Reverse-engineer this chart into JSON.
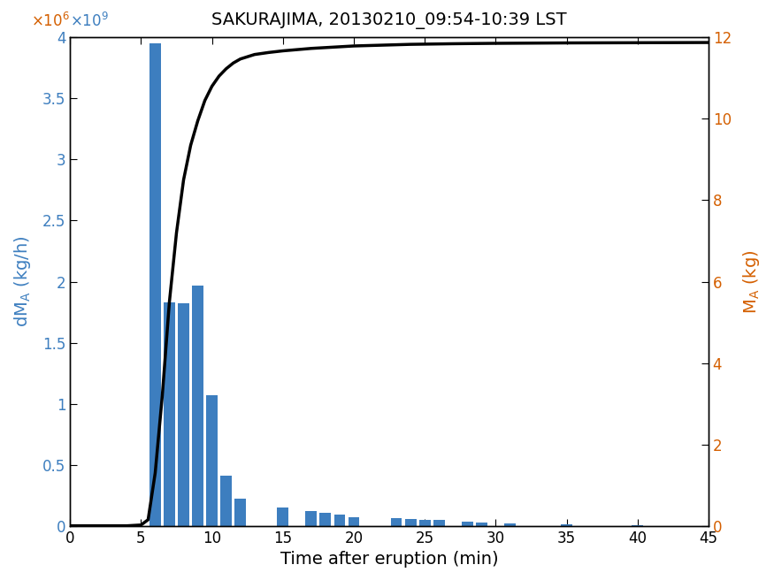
{
  "title": "SAKURAJIMA, 20130210_09:54-10:39 LST",
  "xlabel": "Time after eruption (min)",
  "ylabel_left": "dM_A (kg/h)",
  "ylabel_right": "M_A (kg)",
  "bar_color": "#3d7ebf",
  "line_color": "black",
  "left_color": "#3d7ebf",
  "right_color": "#d45f00",
  "xlim": [
    0,
    45
  ],
  "ylim_left": [
    0,
    4000000000.0
  ],
  "ylim_right": [
    0,
    12000000.0
  ],
  "bar_positions": [
    6,
    7,
    8,
    9,
    10,
    11,
    12,
    15,
    17,
    18,
    19,
    20,
    23,
    24,
    25,
    26,
    28,
    29,
    31,
    35,
    40
  ],
  "bar_heights": [
    3950000000.0,
    1830000000.0,
    1820000000.0,
    1970000000.0,
    1070000000.0,
    410000000.0,
    220000000.0,
    150000000.0,
    120000000.0,
    110000000.0,
    90000000.0,
    70000000.0,
    60000000.0,
    55000000.0,
    50000000.0,
    45000000.0,
    35000000.0,
    30000000.0,
    20000000.0,
    10000000.0,
    5000000.0
  ],
  "bar_width": 0.8,
  "cumulative_x": [
    0,
    1,
    2,
    3,
    4,
    5,
    5.5,
    6,
    6.5,
    7,
    7.5,
    8,
    8.5,
    9,
    9.5,
    10,
    10.5,
    11,
    11.5,
    12,
    13,
    14,
    15,
    16,
    17,
    18,
    19,
    20,
    21,
    22,
    23,
    24,
    25,
    27,
    30,
    35,
    40,
    45
  ],
  "cumulative_y": [
    0,
    0,
    0,
    0,
    0,
    20000.0,
    150000.0,
    1300000.0,
    3200000.0,
    5500000.0,
    7200000.0,
    8500000.0,
    9350000.0,
    9950000.0,
    10450000.0,
    10800000.0,
    11050000.0,
    11230000.0,
    11370000.0,
    11470000.0,
    11580000.0,
    11630000.0,
    11670000.0,
    11700000.0,
    11730000.0,
    11750000.0,
    11770000.0,
    11790000.0,
    11800000.0,
    11810000.0,
    11820000.0,
    11830000.0,
    11835000.0,
    11845000.0,
    11855000.0,
    11865000.0,
    11870000.0,
    11875000.0
  ],
  "left_yticks": [
    0,
    500000000.0,
    1000000000.0,
    1500000000.0,
    2000000000.0,
    2500000000.0,
    3000000000.0,
    3500000000.0,
    4000000000.0
  ],
  "left_yticklabels": [
    "0",
    "0.5",
    "1",
    "1.5",
    "2",
    "2.5",
    "3",
    "3.5",
    "4"
  ],
  "right_yticks": [
    0,
    2000000.0,
    4000000.0,
    6000000.0,
    8000000.0,
    10000000.0,
    12000000.0
  ],
  "right_yticklabels": [
    "0",
    "2",
    "4",
    "6",
    "8",
    "10",
    "12"
  ],
  "xticks": [
    0,
    5,
    10,
    15,
    20,
    25,
    30,
    35,
    40,
    45
  ],
  "xticklabels": [
    "0",
    "5",
    "10",
    "15",
    "20",
    "25",
    "30",
    "35",
    "40",
    "45"
  ]
}
